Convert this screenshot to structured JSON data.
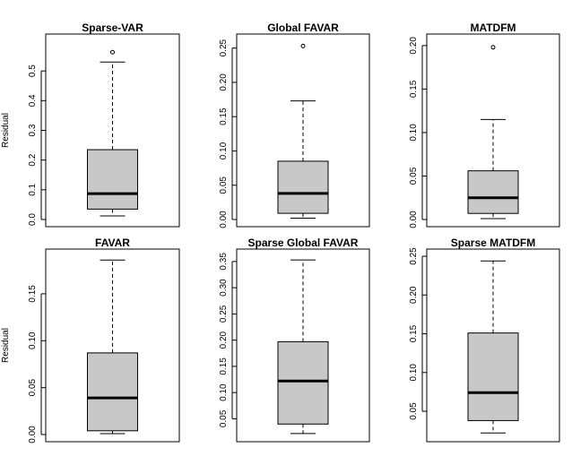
{
  "colors": {
    "box_fill": "#c8c8c8",
    "stroke": "#000000",
    "background": "#ffffff"
  },
  "chart_data": [
    {
      "type": "boxplot",
      "title": "Sparse-VAR",
      "ylabel": "Residual",
      "ylim": [
        0,
        0.6
      ],
      "yticks": [
        "0.0",
        "0.1",
        "0.2",
        "0.3",
        "0.4",
        "0.5"
      ],
      "yticks_values": [
        0,
        0.1,
        0.2,
        0.3,
        0.4,
        0.5
      ],
      "box": {
        "min": 0.012,
        "q1": 0.035,
        "median": 0.087,
        "q3": 0.235,
        "max": 0.53,
        "outliers": [
          0.563
        ]
      }
    },
    {
      "type": "boxplot",
      "title": "Global FAVAR",
      "ylabel": "",
      "ylim": [
        0,
        0.26
      ],
      "yticks": [
        "0.00",
        "0.05",
        "0.10",
        "0.15",
        "0.20",
        "0.25"
      ],
      "yticks_values": [
        0,
        0.05,
        0.1,
        0.15,
        0.2,
        0.25
      ],
      "box": {
        "min": 0.002,
        "q1": 0.009,
        "median": 0.038,
        "q3": 0.085,
        "max": 0.173,
        "outliers": [
          0.253
        ]
      }
    },
    {
      "type": "boxplot",
      "title": "MATDFM",
      "ylabel": "",
      "ylim": [
        0,
        0.205
      ],
      "yticks": [
        "0.00",
        "0.05",
        "0.10",
        "0.15",
        "0.20"
      ],
      "yticks_values": [
        0,
        0.05,
        0.1,
        0.15,
        0.2
      ],
      "box": {
        "min": 0.001,
        "q1": 0.007,
        "median": 0.025,
        "q3": 0.056,
        "max": 0.115,
        "outliers": [
          0.198
        ]
      }
    },
    {
      "type": "boxplot",
      "title": "FAVAR",
      "ylabel": "Residual",
      "ylim": [
        0,
        0.19
      ],
      "yticks": [
        "0.00",
        "0.05",
        "0.10",
        "0.15"
      ],
      "yticks_values": [
        0,
        0.05,
        0.1,
        0.15
      ],
      "box": {
        "min": 0.001,
        "q1": 0.004,
        "median": 0.039,
        "q3": 0.087,
        "max": 0.186,
        "outliers": []
      }
    },
    {
      "type": "boxplot",
      "title": "Sparse Global FAVAR",
      "ylabel": "",
      "ylim": [
        0.02,
        0.36
      ],
      "yticks": [
        "0.05",
        "0.10",
        "0.15",
        "0.20",
        "0.25",
        "0.30",
        "0.35"
      ],
      "yticks_values": [
        0.05,
        0.1,
        0.15,
        0.2,
        0.25,
        0.3,
        0.35
      ],
      "box": {
        "min": 0.022,
        "q1": 0.04,
        "median": 0.122,
        "q3": 0.197,
        "max": 0.353,
        "outliers": []
      }
    },
    {
      "type": "boxplot",
      "title": "Sparse MATDFM",
      "ylabel": "",
      "ylim": [
        0.02,
        0.25
      ],
      "yticks": [
        "0.05",
        "0.10",
        "0.15",
        "0.20",
        "0.25"
      ],
      "yticks_values": [
        0.05,
        0.1,
        0.15,
        0.2,
        0.25
      ],
      "box": {
        "min": 0.022,
        "q1": 0.038,
        "median": 0.074,
        "q3": 0.151,
        "max": 0.244,
        "outliers": []
      }
    }
  ]
}
